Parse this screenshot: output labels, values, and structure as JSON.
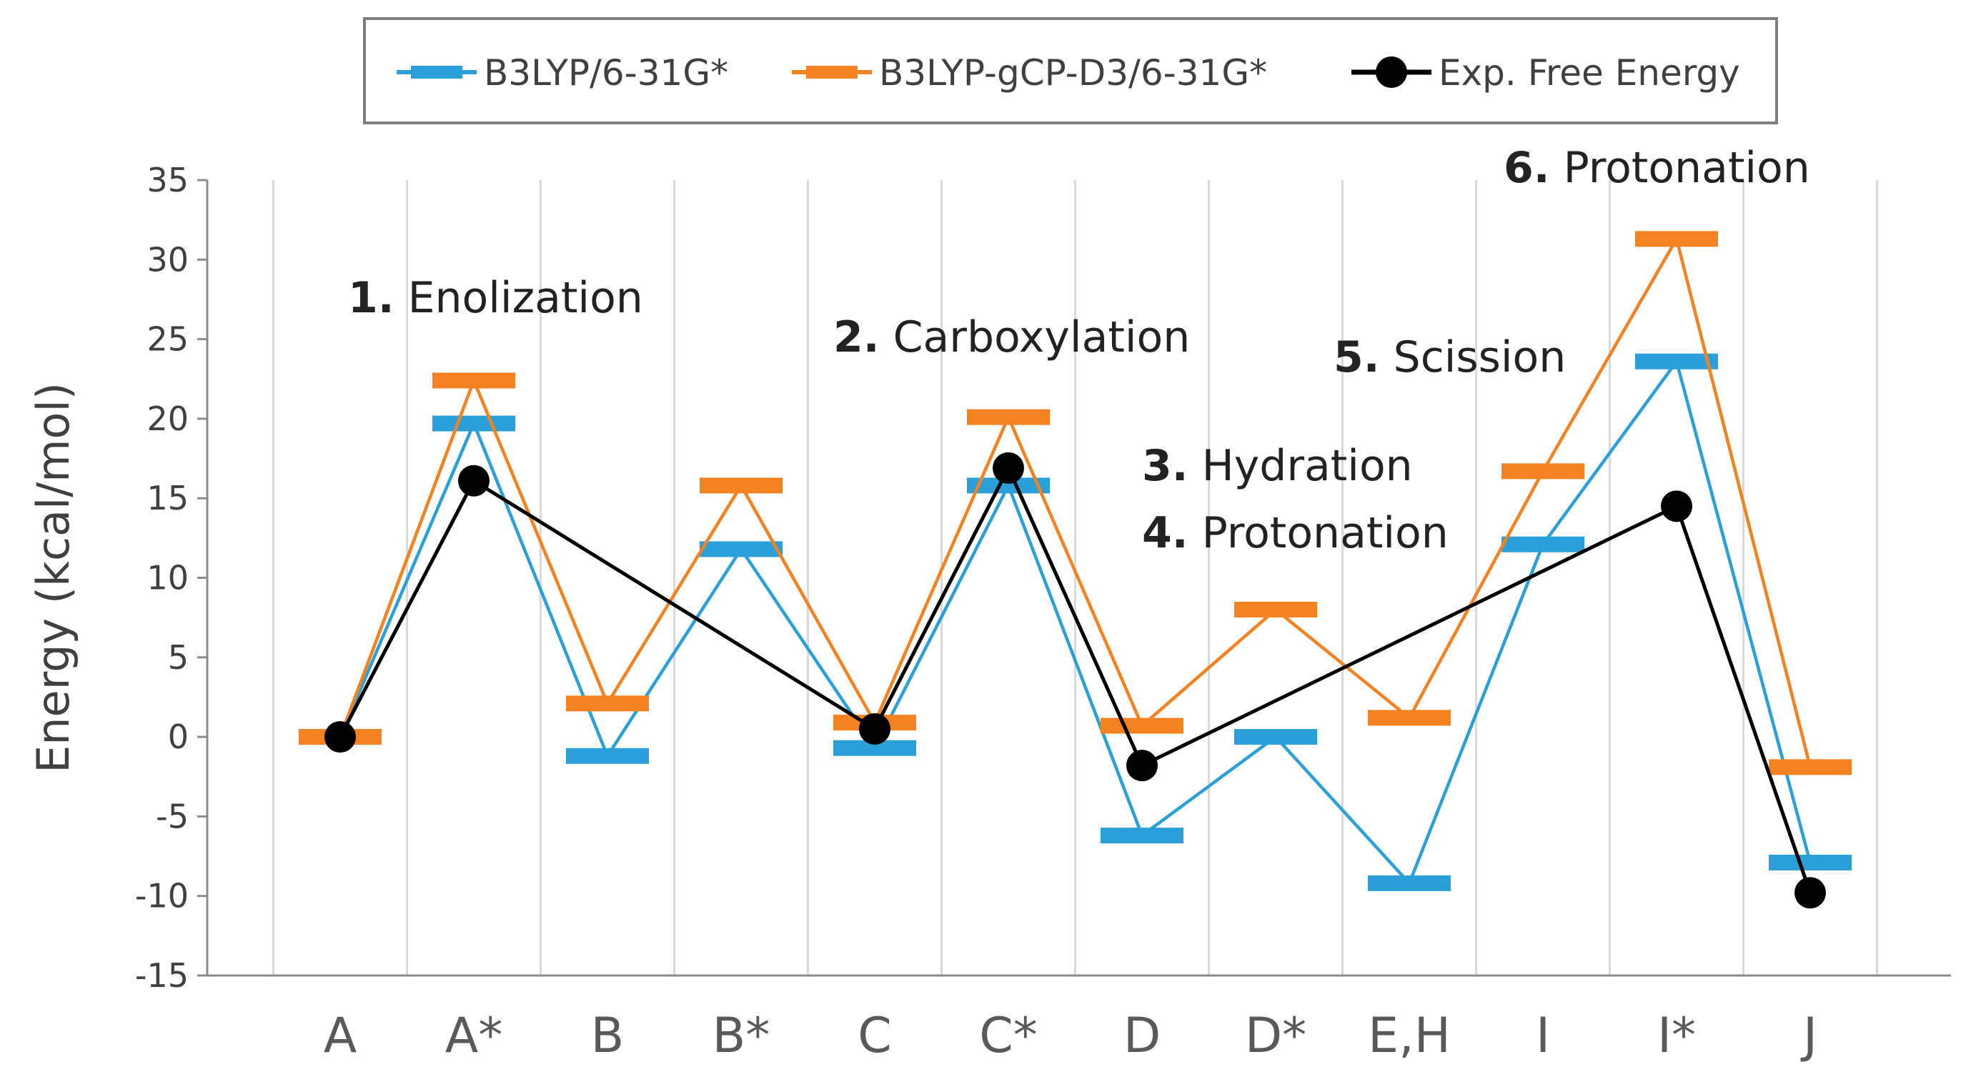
{
  "chart_data": {
    "type": "line",
    "title": "",
    "xlabel": "",
    "ylabel": "Energy (kcal/mol)",
    "ylim": [
      -15,
      35
    ],
    "yticks": [
      -15,
      -10,
      -5,
      0,
      5,
      10,
      15,
      20,
      25,
      30,
      35
    ],
    "categories": [
      "A",
      "A*",
      "B",
      "B*",
      "C",
      "C*",
      "D",
      "D*",
      "E,H",
      "I",
      "I*",
      "J"
    ],
    "grid": "vertical",
    "legend_position": "top",
    "series": [
      {
        "name": "B3LYP/6-31G*",
        "color": "#2ba0d8",
        "marker": "bar",
        "values": [
          0,
          19.7,
          -1.2,
          11.8,
          -0.7,
          15.8,
          -6.2,
          0,
          -9.2,
          12.1,
          23.6,
          -7.9
        ]
      },
      {
        "name": "B3LYP-gCP-D3/6-31G*",
        "color": "#f58220",
        "marker": "bar",
        "values": [
          0,
          22.4,
          2.1,
          15.8,
          0.9,
          20.1,
          0.7,
          8.0,
          1.2,
          16.7,
          31.3,
          -1.9
        ]
      },
      {
        "name": "Exp. Free Energy",
        "color": "#000000",
        "marker": "circle",
        "x": [
          "A",
          "A*",
          "C",
          "C*",
          "D",
          "I*",
          "J"
        ],
        "values": [
          0,
          16.1,
          0.5,
          16.9,
          -1.8,
          14.5,
          -9.8
        ]
      }
    ],
    "annotations": [
      {
        "number": "1.",
        "text": "Enolization"
      },
      {
        "number": "2.",
        "text": "Carboxylation"
      },
      {
        "number": "3.",
        "text": "Hydration"
      },
      {
        "number": "4.",
        "text": "Protonation"
      },
      {
        "number": "5.",
        "text": "Scission"
      },
      {
        "number": "6.",
        "text": "Protonation"
      }
    ]
  }
}
